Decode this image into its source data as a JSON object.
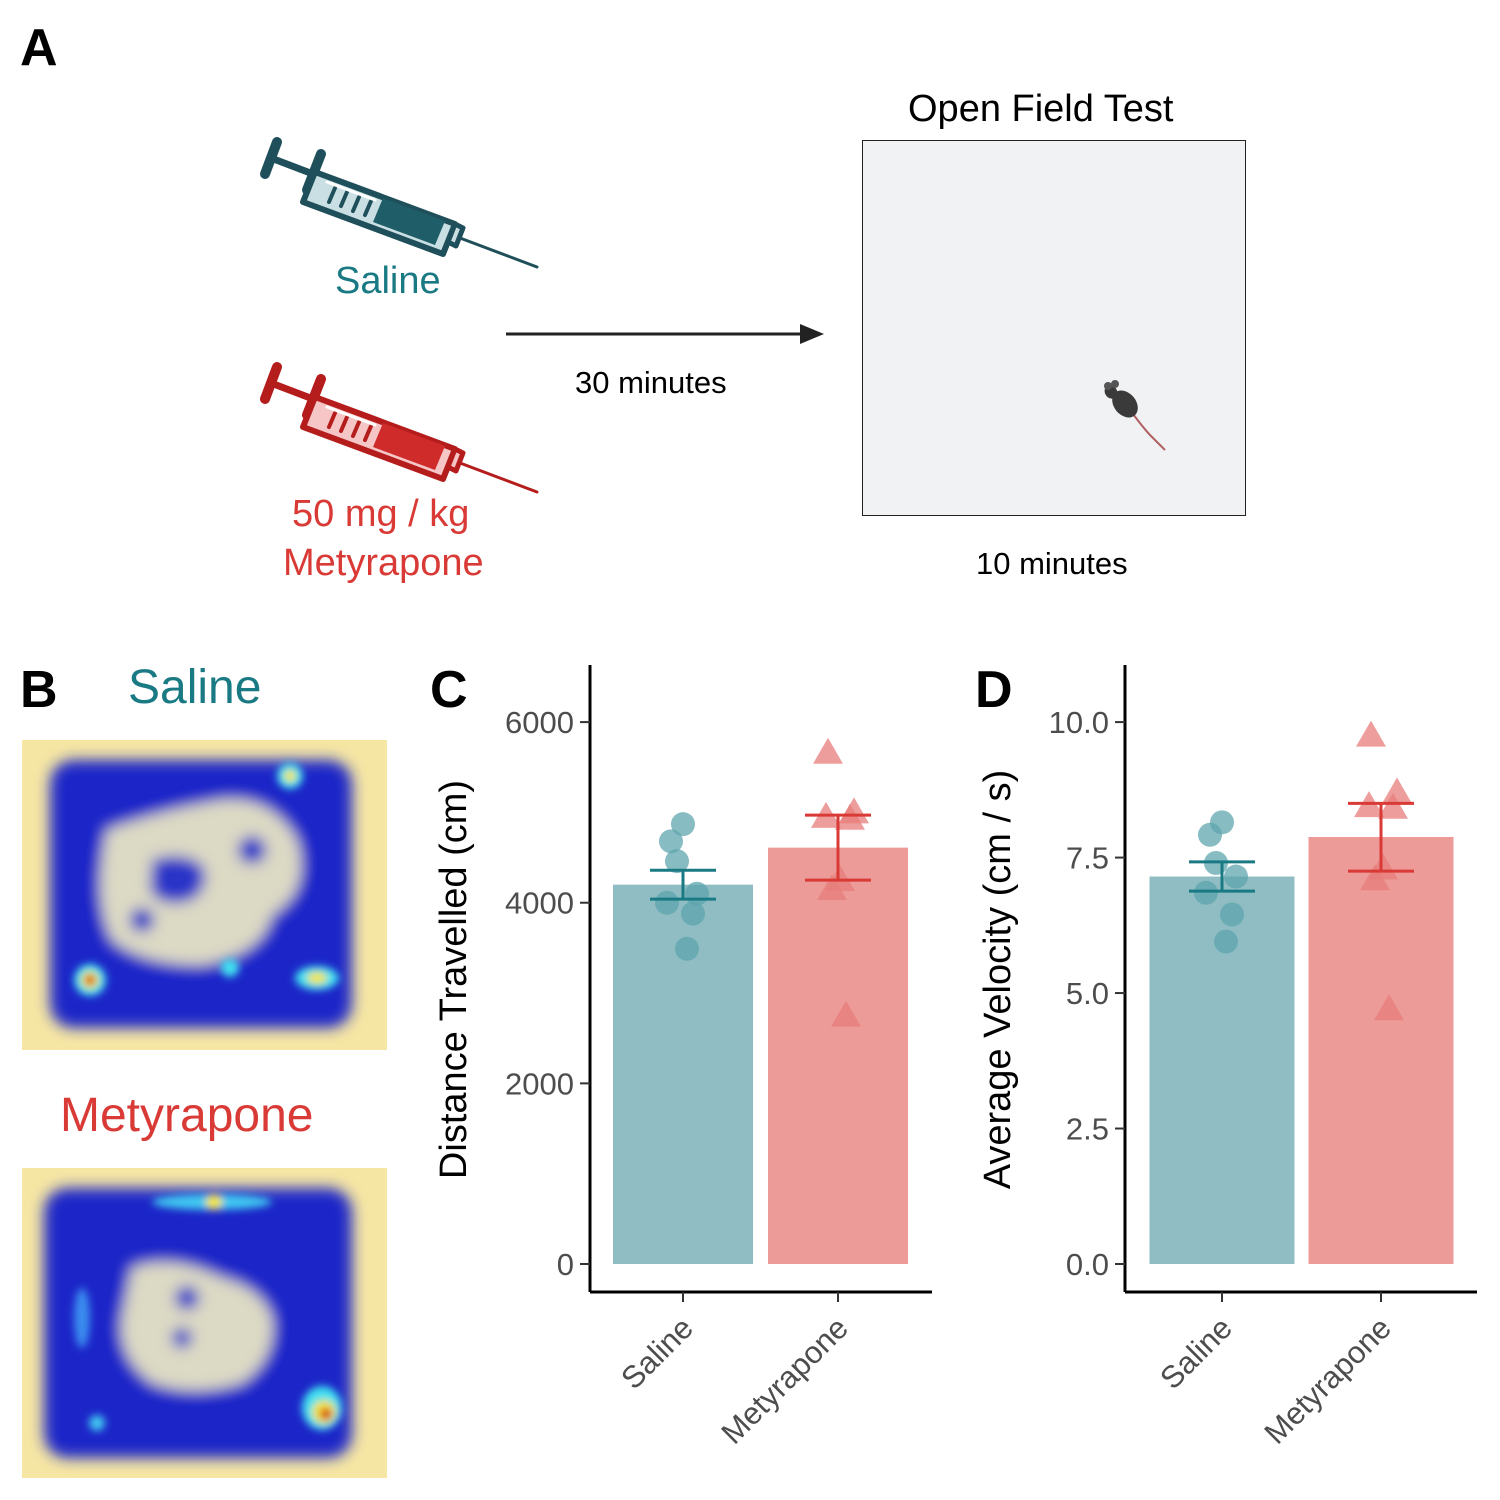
{
  "panels": {
    "a": {
      "letter": "A"
    },
    "b": {
      "letter": "B"
    },
    "c": {
      "letter": "C"
    },
    "d": {
      "letter": "D"
    }
  },
  "design": {
    "saline_label": "Saline",
    "metyrapone_dose_line1": "50 mg / kg",
    "metyrapone_dose_line2": "Metyrapone",
    "delay_label": "30 minutes",
    "test_title": "Open Field Test",
    "test_duration": "10 minutes"
  },
  "heatmaps": {
    "saline_title": "Saline",
    "metyrapone_title": "Metyrapone"
  },
  "colors": {
    "saline": "#1a7a84",
    "saline_fill": "#8fbdc3",
    "saline_point": "#5ea5ad",
    "metyrapone": "#d93a35",
    "metyrapone_fill": "#ec9b99",
    "metyrapone_point": "#e77e7b",
    "syringe_saline": "#1f4f5a",
    "syringe_metyrapone": "#b51c1c"
  },
  "chart_data": [
    {
      "type": "bar",
      "categories": [
        "Saline",
        "Metyrapone"
      ],
      "values": [
        4200,
        4610
      ],
      "error_low": [
        4040,
        4250
      ],
      "error_high": [
        4360,
        4970
      ],
      "points": [
        [
          4870,
          4680,
          4460,
          4100,
          4000,
          3880,
          3490
        ],
        [
          5660,
          5000,
          4950,
          4930,
          4250,
          4150,
          2750
        ]
      ],
      "ylabel": "Distance Travelled (cm)",
      "xlabel": "",
      "ylim": [
        0,
        6300
      ],
      "yticks": [
        "0",
        "2000",
        "4000",
        "6000"
      ]
    },
    {
      "type": "bar",
      "categories": [
        "Saline",
        "Metyrapone"
      ],
      "values": [
        7.15,
        7.88
      ],
      "error_low": [
        6.88,
        7.25
      ],
      "error_high": [
        7.42,
        8.5
      ],
      "points": [
        [
          8.15,
          7.92,
          7.4,
          7.15,
          6.85,
          6.45,
          5.95
        ],
        [
          9.75,
          8.7,
          8.45,
          8.42,
          7.3,
          7.1,
          4.7
        ]
      ],
      "ylabel": "Average Velocity (cm / s)",
      "xlabel": "",
      "ylim": [
        0,
        10.5
      ],
      "yticks": [
        "0.0",
        "2.5",
        "5.0",
        "7.5",
        "10.0"
      ]
    }
  ]
}
